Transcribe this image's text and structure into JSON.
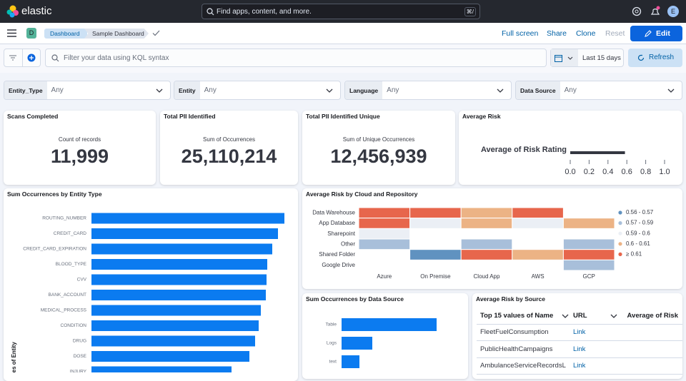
{
  "header": {
    "brand": "elastic",
    "search_placeholder": "Find apps, content, and more.",
    "search_shortcut": "⌘/",
    "avatar": "E"
  },
  "nav": {
    "space": "D",
    "breadcrumbs": [
      "Dashboard",
      "Sample Dashboard"
    ],
    "actions": [
      "Full screen",
      "Share",
      "Clone",
      "Reset"
    ],
    "edit": "Edit"
  },
  "query": {
    "placeholder": "Filter your data using KQL syntax",
    "date_range": "Last 15 days",
    "refresh": "Refresh"
  },
  "controls": [
    {
      "label": "Entity_Type",
      "value": "Any"
    },
    {
      "label": "Entity",
      "value": "Any"
    },
    {
      "label": "Language",
      "value": "Any"
    },
    {
      "label": "Data Source",
      "value": "Any"
    }
  ],
  "metrics": [
    {
      "title": "Scans Completed",
      "label": "Count of records",
      "value": "11,999"
    },
    {
      "title": "Total PII Identified",
      "label": "Sum of Occurrences",
      "value": "25,110,214"
    },
    {
      "title": "Total PII Identified Unique",
      "label": "Sum of Unique Occurrences",
      "value": "12,456,939"
    }
  ],
  "average_risk": {
    "type": "bullet",
    "title": "Average Risk",
    "label": "Average of Risk Rating",
    "value": 0.58,
    "xlim": [
      0,
      1
    ],
    "xticks": [
      {
        "value": 0,
        "label": "0.0"
      },
      {
        "value": 0.2,
        "label": "0.2"
      },
      {
        "value": 0.4,
        "label": "0.4"
      },
      {
        "value": 0.6,
        "label": "0.6"
      },
      {
        "value": 0.8,
        "label": "0.8"
      },
      {
        "value": 1,
        "label": "1.0"
      }
    ]
  },
  "entity_chart": {
    "type": "bar",
    "title": "Sum Occurrences by Entity Type",
    "ylabel": "Values of Entity",
    "categories": [
      "ROUTING_NUMBER",
      "CREDIT_CARD",
      "CREDIT_CARD_EXPIRATION",
      "BLOOD_TYPE",
      "CVV",
      "BANK_ACCOUNT",
      "MEDICAL_PROCESS",
      "CONDITION",
      "DRUG",
      "DOSE",
      "INJURY"
    ],
    "values": [
      270,
      261,
      253,
      246,
      245,
      244,
      237,
      234,
      229,
      221,
      196
    ],
    "color": "#0b7bf0"
  },
  "heatmap": {
    "type": "heatmap",
    "title": "Average Risk by Cloud and Repository",
    "rows": [
      "Data Warehouse",
      "App Database",
      "Sharepoint",
      "Other",
      "Shared Folder",
      "Google Drive"
    ],
    "columns": [
      "Azure",
      "On Premise",
      "Cloud App",
      "AWS",
      "GCP"
    ],
    "values": [
      [
        0.62,
        0.62,
        0.605,
        0.62,
        null
      ],
      [
        0.62,
        0.595,
        0.605,
        0.595,
        0.605
      ],
      [
        0.595,
        null,
        null,
        null,
        null
      ],
      [
        0.58,
        null,
        0.58,
        null,
        0.58
      ],
      [
        null,
        0.565,
        0.62,
        0.605,
        0.62
      ],
      [
        null,
        null,
        null,
        null,
        0.58
      ]
    ],
    "legend": [
      {
        "label": "0.56 - 0.57",
        "min": 0.56,
        "color": "#6092c0"
      },
      {
        "label": "0.57 - 0.59",
        "min": 0.57,
        "color": "#a8bfda"
      },
      {
        "label": "0.59 - 0.6",
        "min": 0.59,
        "color": "#ebeff5"
      },
      {
        "label": "0.6 - 0.61",
        "min": 0.6,
        "color": "#ecb385"
      },
      {
        "label": "≥ 0.61",
        "min": 0.61,
        "color": "#e7664c"
      }
    ]
  },
  "source_chart": {
    "type": "bar",
    "title": "Sum Occurrences by Data Source",
    "categories": [
      "Table",
      "Logs",
      "text"
    ],
    "values": [
      133,
      43,
      25
    ],
    "color": "#0b7bf0"
  },
  "source_table": {
    "title": "Average Risk by Source",
    "columns": [
      "Top 15 values of Name",
      "URL",
      "Average of Risk"
    ],
    "rows": [
      [
        "FleetFuelConsumption",
        "Link"
      ],
      [
        "PublicHealthCampaigns",
        "Link"
      ],
      [
        "AmbulanceServiceRecordsL",
        "Link"
      ]
    ]
  }
}
